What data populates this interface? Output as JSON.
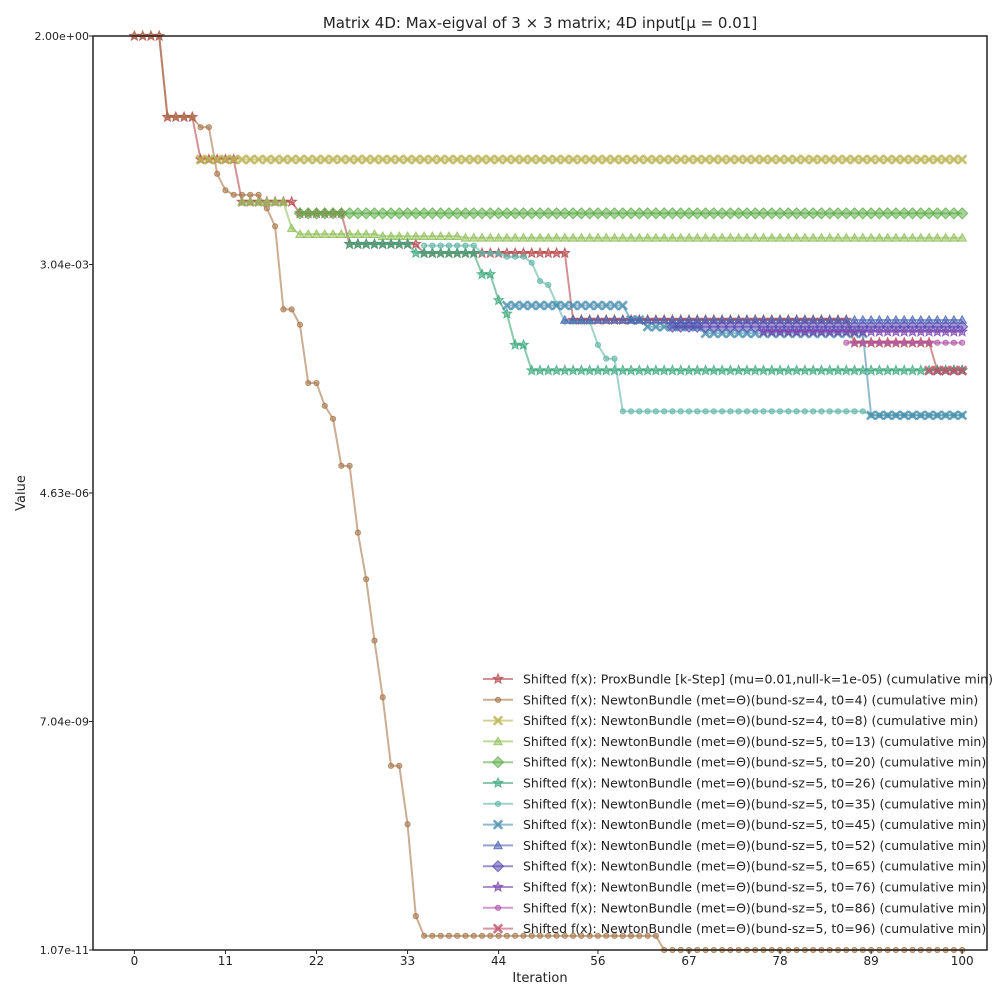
{
  "chart_data": {
    "type": "line",
    "title": "Matrix 4D: Max-eigval of 3 × 3 matrix; 4D input[μ = 0.01]",
    "xlabel": "Iteration",
    "ylabel": "Value",
    "y_scale": "log",
    "xlim": [
      -5,
      103
    ],
    "ylim": [
      1.07e-11,
      2.0
    ],
    "xticks": [
      0,
      11,
      22,
      33,
      44,
      56,
      67,
      78,
      89,
      100
    ],
    "yticks": [
      {
        "value": 2.0,
        "label": "2.00e+00"
      },
      {
        "value": 0.00304,
        "label": "3.04e-03"
      },
      {
        "value": 4.63e-06,
        "label": "4.63e-06"
      },
      {
        "value": 7.04e-09,
        "label": "7.04e-09"
      },
      {
        "value": 1.07e-11,
        "label": "1.07e-11"
      }
    ],
    "grid": false,
    "legend_position": "lower-right",
    "series": [
      {
        "name": "Shifted f(x): ProxBundle [k-Step] (mu=0.01,null-k=1e-05) (cumulative min)",
        "color": "#b5474b",
        "marker": "star",
        "points": [
          [
            0,
            2.0
          ],
          [
            3,
            2.0
          ],
          [
            4,
            0.2
          ],
          [
            7,
            0.2
          ],
          [
            8,
            0.06
          ],
          [
            12,
            0.06
          ],
          [
            13,
            0.018
          ],
          [
            19,
            0.018
          ],
          [
            20,
            0.013
          ],
          [
            25,
            0.013
          ],
          [
            26,
            0.00543
          ],
          [
            34,
            0.00543
          ],
          [
            35,
            0.0042
          ],
          [
            44,
            0.0042
          ],
          [
            52,
            0.0042
          ],
          [
            53,
            0.00063
          ],
          [
            86,
            0.00063
          ],
          [
            87,
            0.00033
          ],
          [
            96,
            0.00033
          ],
          [
            97,
            0.00015
          ],
          [
            100,
            0.00015
          ]
        ]
      },
      {
        "name": "Shifted f(x): NewtonBundle (met=Θ)(bund-sz=4, t0=4) (cumulative min)",
        "color": "#a8764a",
        "marker": "circle",
        "points": [
          [
            0,
            2.0
          ],
          [
            3,
            2.0
          ],
          [
            4,
            0.2
          ],
          [
            7,
            0.2
          ],
          [
            8,
            0.15
          ],
          [
            9,
            0.15
          ],
          [
            10,
            0.04
          ],
          [
            11,
            0.025
          ],
          [
            12,
            0.022
          ],
          [
            15,
            0.022
          ],
          [
            16,
            0.015
          ],
          [
            17,
            0.009
          ],
          [
            18,
            0.00085
          ],
          [
            19,
            0.00085
          ],
          [
            20,
            0.00055
          ],
          [
            21,
            0.000105
          ],
          [
            22,
            0.000105
          ],
          [
            23,
            5.5e-05
          ],
          [
            24,
            3.8e-05
          ],
          [
            25,
            1e-05
          ],
          [
            26,
            1e-05
          ],
          [
            27,
            1.5e-06
          ],
          [
            28,
            4e-07
          ],
          [
            29,
            7e-08
          ],
          [
            30,
            1.4e-08
          ],
          [
            31,
            2e-09
          ],
          [
            32,
            2e-09
          ],
          [
            33,
            3.8e-10
          ],
          [
            34,
            2.8e-11
          ],
          [
            35,
            1.6e-11
          ],
          [
            43,
            1.6e-11
          ],
          [
            44,
            1.6e-11
          ],
          [
            45,
            1.6e-11
          ],
          [
            46,
            1.6e-11
          ],
          [
            47,
            1.6e-11
          ],
          [
            48,
            1.6e-11
          ],
          [
            49,
            1.6e-11
          ],
          [
            50,
            1.6e-11
          ],
          [
            51,
            1.6e-11
          ],
          [
            52,
            1.6e-11
          ],
          [
            53,
            1.6e-11
          ],
          [
            54,
            1.6e-11
          ],
          [
            55,
            1.6e-11
          ],
          [
            56,
            1.6e-11
          ],
          [
            57,
            1.6e-11
          ],
          [
            58,
            1.6e-11
          ],
          [
            59,
            1.6e-11
          ],
          [
            60,
            1.6e-11
          ],
          [
            61,
            1.6e-11
          ],
          [
            62,
            1.6e-11
          ],
          [
            63,
            1.6e-11
          ],
          [
            64,
            1.07e-11
          ],
          [
            100,
            1.07e-11
          ]
        ]
      },
      {
        "name": "Shifted f(x): NewtonBundle (met=Θ)(bund-sz=4, t0=8) (cumulative min)",
        "color": "#b9b34f",
        "marker": "x",
        "points": [
          [
            8,
            0.06
          ],
          [
            100,
            0.06
          ]
        ]
      },
      {
        "name": "Shifted f(x): NewtonBundle (met=Θ)(bund-sz=5, t0=13) (cumulative min)",
        "color": "#8fbf58",
        "marker": "triangle",
        "points": [
          [
            13,
            0.018
          ],
          [
            18,
            0.018
          ],
          [
            19,
            0.0085
          ],
          [
            20,
            0.0072
          ],
          [
            25,
            0.0072
          ],
          [
            30,
            0.0068
          ],
          [
            40,
            0.0065
          ],
          [
            100,
            0.0065
          ]
        ]
      },
      {
        "name": "Shifted f(x): NewtonBundle (met=Θ)(bund-sz=5, t0=20) (cumulative min)",
        "color": "#5fae4a",
        "marker": "diamond",
        "points": [
          [
            20,
            0.013
          ],
          [
            100,
            0.013
          ]
        ]
      },
      {
        "name": "Shifted f(x): NewtonBundle (met=Θ)(bund-sz=5, t0=26) (cumulative min)",
        "color": "#3aa77a",
        "marker": "star",
        "points": [
          [
            26,
            0.00543
          ],
          [
            33,
            0.00543
          ],
          [
            34,
            0.0042
          ],
          [
            41,
            0.0042
          ],
          [
            42,
            0.0023
          ],
          [
            43,
            0.0023
          ],
          [
            44,
            0.0011
          ],
          [
            45,
            0.00075
          ],
          [
            46,
            0.00031
          ],
          [
            47,
            0.00031
          ],
          [
            48,
            0.00015
          ],
          [
            100,
            0.00015
          ]
        ]
      },
      {
        "name": "Shifted f(x): NewtonBundle (met=Θ)(bund-sz=5, t0=35) (cumulative min)",
        "color": "#5fb5a8",
        "marker": "circle",
        "points": [
          [
            35,
            0.0052
          ],
          [
            41,
            0.0052
          ],
          [
            42,
            0.0042
          ],
          [
            44,
            0.0042
          ],
          [
            45,
            0.0038
          ],
          [
            47,
            0.0038
          ],
          [
            48,
            0.0032
          ],
          [
            49,
            0.0019
          ],
          [
            50,
            0.0017
          ],
          [
            51,
            0.001
          ],
          [
            52,
            0.0006
          ],
          [
            55,
            0.0006
          ],
          [
            56,
            0.00031
          ],
          [
            57,
            0.00021
          ],
          [
            58,
            0.00021
          ],
          [
            59,
            4.7e-05
          ],
          [
            88,
            4.7e-05
          ],
          [
            89,
            4.2e-05
          ],
          [
            100,
            4.2e-05
          ]
        ]
      },
      {
        "name": "Shifted f(x): NewtonBundle (met=Θ)(bund-sz=5, t0=45) (cumulative min)",
        "color": "#4a8eb0",
        "marker": "x",
        "points": [
          [
            45,
            0.00095
          ],
          [
            59,
            0.00095
          ],
          [
            60,
            0.00063
          ],
          [
            61,
            0.00063
          ],
          [
            62,
            0.00052
          ],
          [
            68,
            0.00052
          ],
          [
            69,
            0.00043
          ],
          [
            88,
            0.00043
          ],
          [
            89,
            4.2e-05
          ],
          [
            100,
            4.2e-05
          ]
        ]
      },
      {
        "name": "Shifted f(x): NewtonBundle (met=Θ)(bund-sz=5, t0=52) (cumulative min)",
        "color": "#4a64b5",
        "marker": "triangle",
        "points": [
          [
            52,
            0.00063
          ],
          [
            100,
            0.00063
          ]
        ]
      },
      {
        "name": "Shifted f(x): NewtonBundle (met=Θ)(bund-sz=5, t0=65) (cumulative min)",
        "color": "#5a4ab5",
        "marker": "diamond",
        "points": [
          [
            65,
            0.00052
          ],
          [
            100,
            0.00052
          ]
        ]
      },
      {
        "name": "Shifted f(x): NewtonBundle (met=Θ)(bund-sz=5, t0=76) (cumulative min)",
        "color": "#7a45b0",
        "marker": "star",
        "points": [
          [
            76,
            0.00045
          ],
          [
            100,
            0.00045
          ]
        ]
      },
      {
        "name": "Shifted f(x): NewtonBundle (met=Θ)(bund-sz=5, t0=86) (cumulative min)",
        "color": "#b055a8",
        "marker": "circle",
        "points": [
          [
            86,
            0.00033
          ],
          [
            100,
            0.00033
          ]
        ]
      },
      {
        "name": "Shifted f(x): NewtonBundle (met=Θ)(bund-sz=5, t0=96) (cumulative min)",
        "color": "#c0506a",
        "marker": "x",
        "points": [
          [
            96,
            0.00015
          ],
          [
            100,
            0.00015
          ]
        ]
      }
    ]
  }
}
